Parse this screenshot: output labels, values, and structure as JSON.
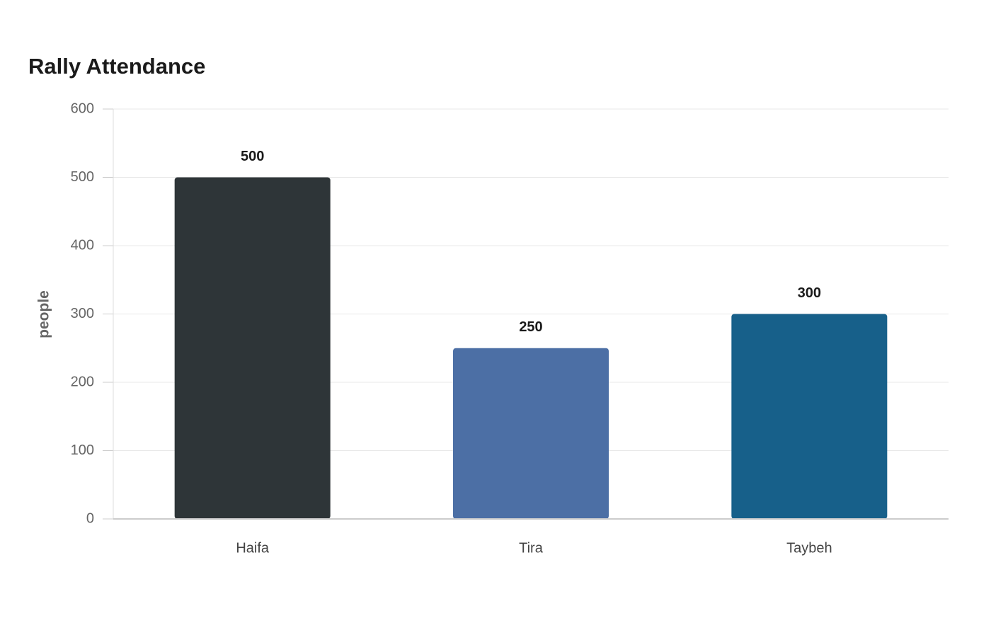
{
  "chart_data": {
    "type": "bar",
    "title": "Rally Attendance",
    "y_label": "people",
    "categories": [
      "Haifa",
      "Tira",
      "Taybeh"
    ],
    "values": [
      500,
      250,
      300
    ],
    "colors": [
      "#2e3538",
      "#4c6fa5",
      "#17608a"
    ],
    "ylim": [
      0,
      600
    ],
    "yticks": [
      0,
      100,
      200,
      300,
      400,
      500,
      600
    ],
    "grid": true
  }
}
